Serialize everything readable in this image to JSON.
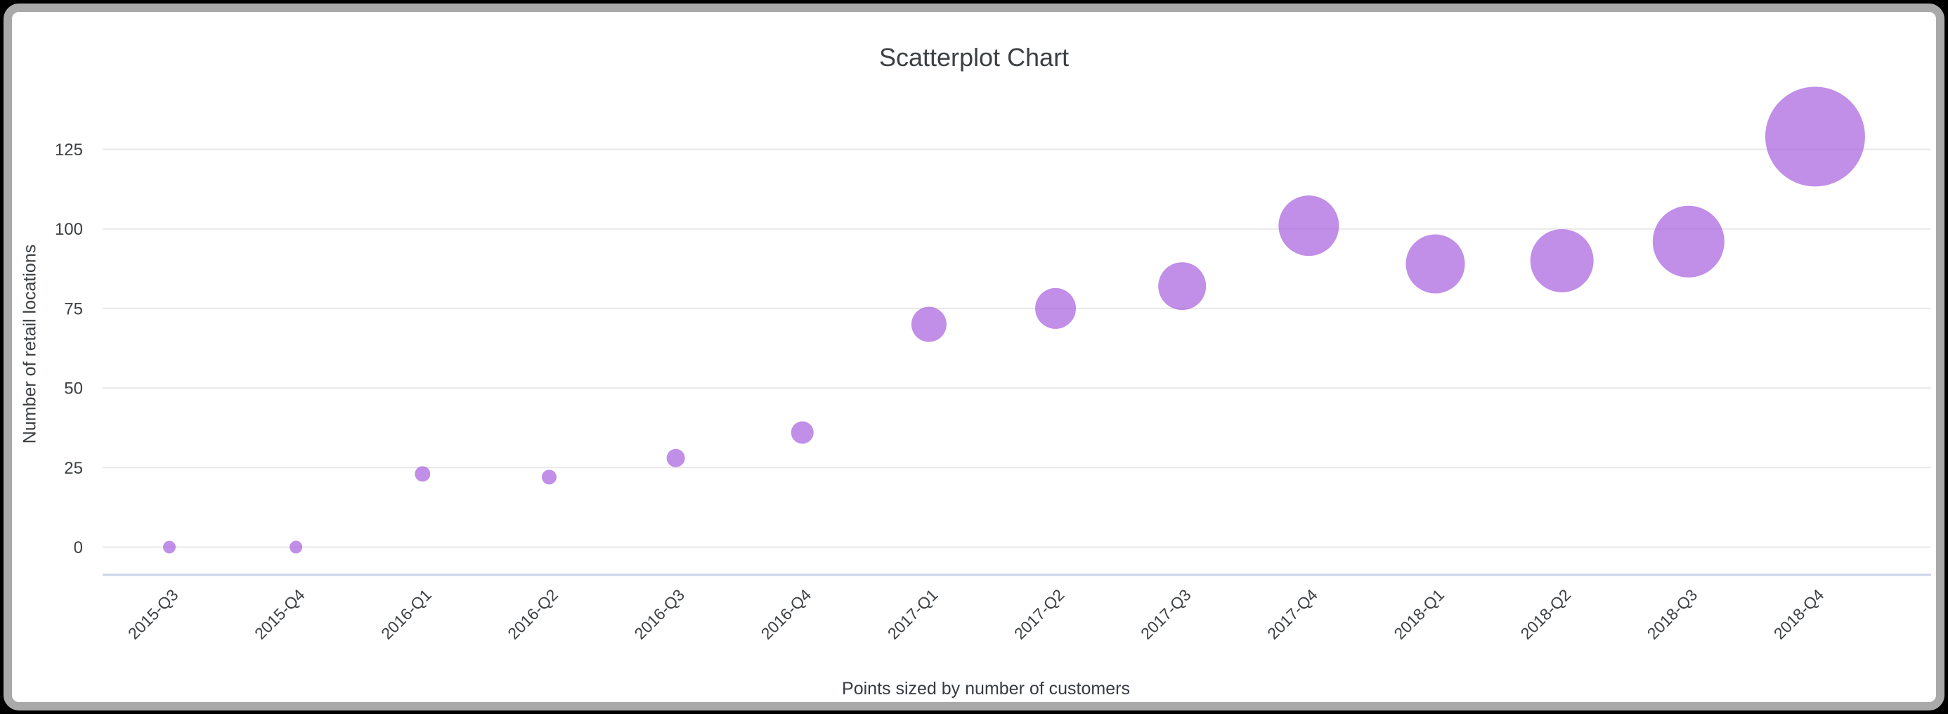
{
  "window": {
    "frame_border_color": "#a9a9a9",
    "outer_background": "#000000",
    "card_background": "#ffffff"
  },
  "chart_data": {
    "type": "scatter",
    "title": "Scatterplot Chart",
    "xlabel": "Points sized by number of customers",
    "ylabel": "Number of retail locations",
    "legend": "none",
    "grid": "horizontal-only",
    "y_ticks": [
      0,
      25,
      50,
      75,
      100,
      125
    ],
    "ylim": [
      0,
      140
    ],
    "categories": [
      "2015-Q3",
      "2015-Q4",
      "2016-Q1",
      "2016-Q2",
      "2016-Q3",
      "2016-Q4",
      "2017-Q1",
      "2017-Q2",
      "2017-Q3",
      "2017-Q4",
      "2018-Q1",
      "2018-Q2",
      "2018-Q3",
      "2018-Q4"
    ],
    "points": [
      {
        "category": "2015-Q3",
        "y": 0,
        "r": 9
      },
      {
        "category": "2015-Q4",
        "y": 0,
        "r": 9
      },
      {
        "category": "2016-Q1",
        "y": 23,
        "r": 11
      },
      {
        "category": "2016-Q2",
        "y": 22,
        "r": 10.5
      },
      {
        "category": "2016-Q3",
        "y": 28,
        "r": 13
      },
      {
        "category": "2016-Q4",
        "y": 36,
        "r": 16
      },
      {
        "category": "2017-Q1",
        "y": 70,
        "r": 25
      },
      {
        "category": "2017-Q2",
        "y": 75,
        "r": 29
      },
      {
        "category": "2017-Q3",
        "y": 82,
        "r": 34
      },
      {
        "category": "2017-Q4",
        "y": 101,
        "r": 43
      },
      {
        "category": "2018-Q1",
        "y": 89,
        "r": 42
      },
      {
        "category": "2018-Q2",
        "y": 90,
        "r": 45
      },
      {
        "category": "2018-Q3",
        "y": 96,
        "r": 51
      },
      {
        "category": "2018-Q4",
        "y": 129,
        "r": 71
      }
    ],
    "point_color": "#A963DF",
    "point_opacity": 0.72,
    "grid_color": "#e8e8e8",
    "axis_line_color": "#cbd4e7",
    "tick_text_color": "#3c4043",
    "title_color": "#3c4043"
  }
}
